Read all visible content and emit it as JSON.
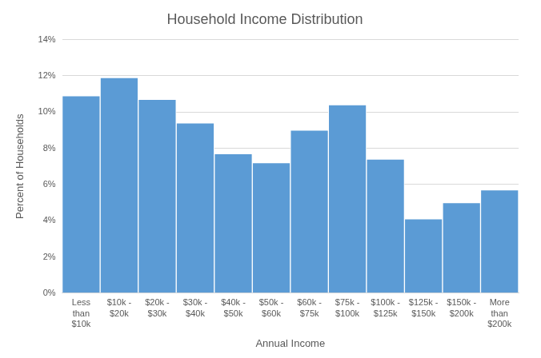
{
  "chart_data": {
    "type": "bar",
    "title": "Household Income Distribution",
    "x_label": "Annual Income",
    "y_label": "Percent of Households",
    "categories": [
      "Less than $10k",
      "$10k - $20k",
      "$20k - $30k",
      "$30k - $40k",
      "$40k - $50k",
      "$50k - $60k",
      "$60k - $75k",
      "$75k - $100k",
      "$100k - $125k",
      "$125k - $150k",
      "$150k - $200k",
      "More than $200k"
    ],
    "values": [
      10.9,
      11.9,
      10.7,
      9.4,
      7.7,
      7.2,
      9.0,
      10.4,
      7.4,
      4.1,
      5.0,
      5.7
    ],
    "color": "#5b9bd5",
    "ylim": [
      0,
      14
    ],
    "yticks": [
      {
        "value": 0,
        "label": "0%"
      },
      {
        "value": 2,
        "label": "2%"
      },
      {
        "value": 4,
        "label": "4%"
      },
      {
        "value": 6,
        "label": "6%"
      },
      {
        "value": 8,
        "label": "8%"
      },
      {
        "value": 10,
        "label": "10%"
      },
      {
        "value": 12,
        "label": "12%"
      },
      {
        "value": 14,
        "label": "14%"
      }
    ],
    "grid": true
  }
}
